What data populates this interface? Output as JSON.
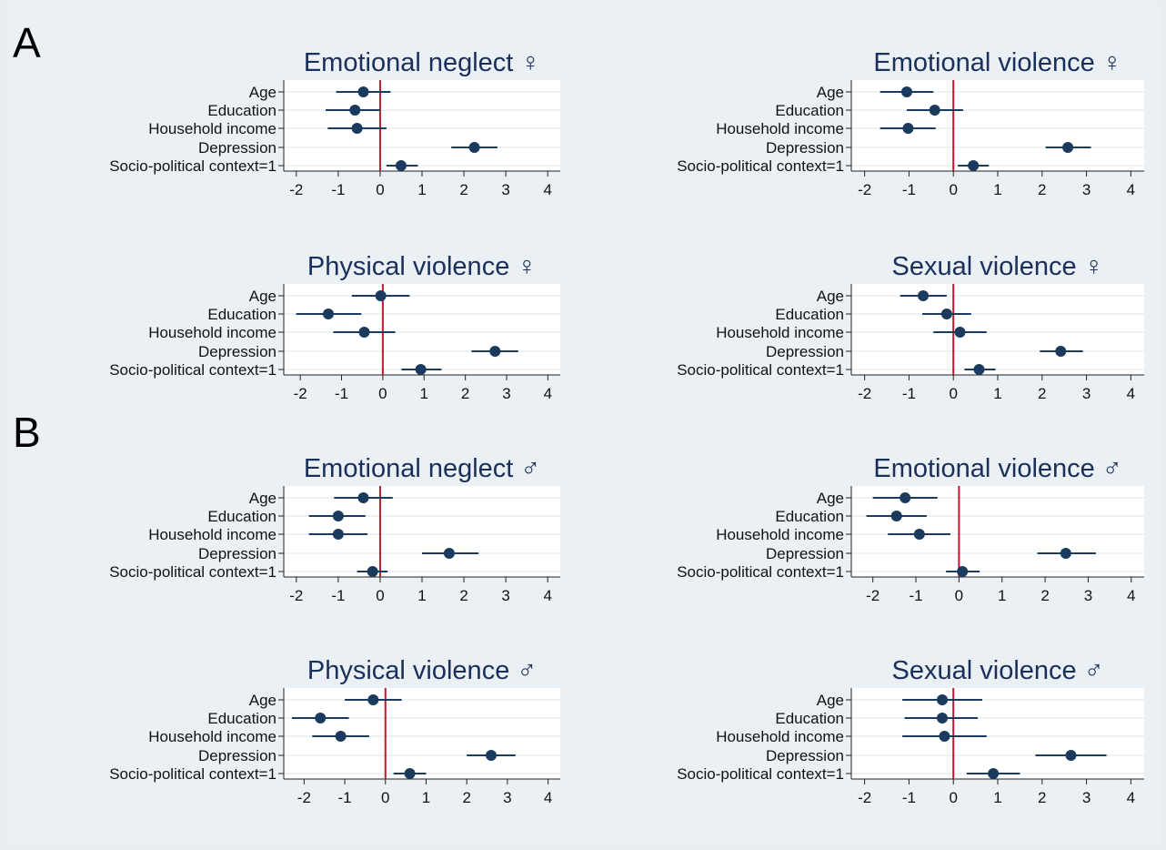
{
  "sections": [
    {
      "label": "A"
    },
    {
      "label": "B"
    }
  ],
  "colors": {
    "background": "#eaf0f4",
    "plot_area": "#ffffff",
    "marker": "#1a3a5e",
    "ci_line": "#1a3a5e",
    "reference_line": "#c0182e",
    "title": "#1a2f5a"
  },
  "chart_data": [
    {
      "type": "scatter",
      "title": "Emotional neglect ♀",
      "section": "A",
      "categories": [
        "Age",
        "Education",
        "Household income",
        "Depression",
        "Socio-political context=1"
      ],
      "estimate": [
        -0.4,
        -0.6,
        -0.55,
        2.25,
        0.5
      ],
      "ci_low": [
        -1.05,
        -1.3,
        -1.25,
        1.7,
        0.15
      ],
      "ci_high": [
        0.25,
        0.0,
        0.15,
        2.8,
        0.9
      ],
      "xlim": [
        -2.3,
        4.3
      ],
      "xticks": [
        "-2",
        "-1",
        "0",
        "1",
        "2",
        "3",
        "4"
      ],
      "reference_line": 0,
      "grid": true
    },
    {
      "type": "scatter",
      "title": "Emotional violence ♀",
      "section": "A",
      "categories": [
        "Age",
        "Education",
        "Household income",
        "Depression",
        "Socio-political context=1"
      ],
      "estimate": [
        -1.05,
        -0.42,
        -1.02,
        2.58,
        0.45
      ],
      "ci_low": [
        -1.65,
        -1.05,
        -1.65,
        2.08,
        0.1
      ],
      "ci_high": [
        -0.45,
        0.22,
        -0.4,
        3.1,
        0.8
      ],
      "xlim": [
        -2.3,
        4.3
      ],
      "xticks": [
        "-2",
        "-1",
        "0",
        "1",
        "2",
        "3",
        "4"
      ],
      "reference_line": 0,
      "grid": true
    },
    {
      "type": "scatter",
      "title": "Physical violence ♀",
      "section": "A",
      "categories": [
        "Age",
        "Education",
        "Household income",
        "Depression",
        "Socio-political context=1"
      ],
      "estimate": [
        -0.05,
        -1.32,
        -0.45,
        2.72,
        0.92
      ],
      "ci_low": [
        -0.75,
        -2.1,
        -1.2,
        2.15,
        0.45
      ],
      "ci_high": [
        0.65,
        -0.52,
        0.3,
        3.28,
        1.42
      ],
      "xlim": [
        -2.4,
        4.3
      ],
      "xticks": [
        "-2",
        "-1",
        "0",
        "1",
        "2",
        "3",
        "4"
      ],
      "reference_line": 0,
      "grid": true
    },
    {
      "type": "scatter",
      "title": "Sexual violence ♀",
      "section": "A",
      "categories": [
        "Age",
        "Education",
        "Household income",
        "Depression",
        "Socio-political context=1"
      ],
      "estimate": [
        -0.68,
        -0.15,
        0.15,
        2.42,
        0.58
      ],
      "ci_low": [
        -1.2,
        -0.7,
        -0.45,
        1.95,
        0.25
      ],
      "ci_high": [
        -0.15,
        0.4,
        0.75,
        2.92,
        0.95
      ],
      "xlim": [
        -2.3,
        4.3
      ],
      "xticks": [
        "-2",
        "-1",
        "0",
        "1",
        "2",
        "3",
        "4"
      ],
      "reference_line": 0,
      "grid": true
    },
    {
      "type": "scatter",
      "title": "Emotional neglect ♂",
      "section": "B",
      "categories": [
        "Age",
        "Education",
        "Household income",
        "Depression",
        "Socio-political context=1"
      ],
      "estimate": [
        -0.4,
        -1.0,
        -1.0,
        1.65,
        -0.18
      ],
      "ci_low": [
        -1.1,
        -1.7,
        -1.7,
        1.0,
        -0.55
      ],
      "ci_high": [
        0.3,
        -0.35,
        -0.3,
        2.35,
        0.18
      ],
      "xlim": [
        -2.3,
        4.3
      ],
      "xticks": [
        "-2",
        "-1",
        "0",
        "1",
        "2",
        "3",
        "4"
      ],
      "reference_line": 0,
      "grid": true
    },
    {
      "type": "scatter",
      "title": "Emotional violence ♂",
      "section": "B",
      "categories": [
        "Age",
        "Education",
        "Household income",
        "Depression",
        "Socio-political context=1"
      ],
      "estimate": [
        -1.25,
        -1.45,
        -0.92,
        2.48,
        0.08
      ],
      "ci_low": [
        -2.0,
        -2.15,
        -1.65,
        1.82,
        -0.3
      ],
      "ci_high": [
        -0.5,
        -0.75,
        -0.2,
        3.18,
        0.48
      ],
      "xlim": [
        -2.5,
        4.3
      ],
      "xticks": [
        "-2",
        "-1",
        "0",
        "1",
        "2",
        "3",
        "4"
      ],
      "reference_line": 0,
      "grid": true
    },
    {
      "type": "scatter",
      "title": "Physical violence ♂",
      "section": "B",
      "categories": [
        "Age",
        "Education",
        "Household income",
        "Depression",
        "Socio-political context=1"
      ],
      "estimate": [
        -0.3,
        -1.6,
        -1.1,
        2.6,
        0.6
      ],
      "ci_low": [
        -1.0,
        -2.3,
        -1.8,
        2.0,
        0.2
      ],
      "ci_high": [
        0.4,
        -0.9,
        -0.4,
        3.2,
        1.0
      ],
      "xlim": [
        -2.5,
        4.3
      ],
      "xticks": [
        "-2",
        "-1",
        "0",
        "1",
        "2",
        "3",
        "4"
      ],
      "reference_line": 0,
      "grid": true
    },
    {
      "type": "scatter",
      "title": "Sexual violence ♂",
      "section": "B",
      "categories": [
        "Age",
        "Education",
        "Household income",
        "Depression",
        "Socio-political context=1"
      ],
      "estimate": [
        -0.25,
        -0.25,
        -0.2,
        2.65,
        0.9
      ],
      "ci_low": [
        -1.15,
        -1.1,
        -1.15,
        1.85,
        0.3
      ],
      "ci_high": [
        0.65,
        0.55,
        0.75,
        3.45,
        1.5
      ],
      "xlim": [
        -2.3,
        4.3
      ],
      "xticks": [
        "-2",
        "-1",
        "0",
        "1",
        "2",
        "3",
        "4"
      ],
      "reference_line": 0,
      "grid": true
    }
  ]
}
